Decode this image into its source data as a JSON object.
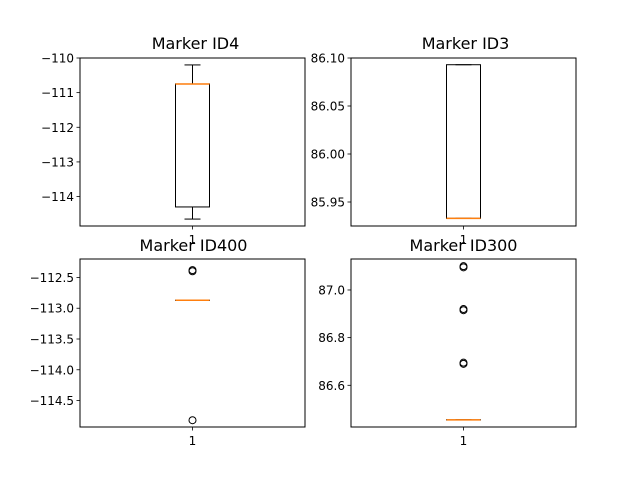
{
  "chart_data": [
    {
      "type": "box",
      "title": "Marker ID4",
      "ylim": [
        -114.85,
        -110.0
      ],
      "yticks": [
        -110,
        -111,
        -112,
        -113,
        -114
      ],
      "ytick_labels": [
        "−110",
        "−111",
        "−112",
        "−113",
        "−114"
      ],
      "xtick_labels": [
        "1"
      ],
      "box": {
        "whisker_low": -114.65,
        "q1": -114.3,
        "median": -110.75,
        "q3": -110.75,
        "whisker_high": -110.2
      },
      "fliers": []
    },
    {
      "type": "box",
      "title": "Marker ID3",
      "ylim": [
        85.925,
        86.1
      ],
      "yticks": [
        86.1,
        86.05,
        86.0,
        85.95
      ],
      "ytick_labels": [
        "86.10",
        "86.05",
        "86.00",
        "85.95"
      ],
      "xtick_labels": [
        "1"
      ],
      "box": {
        "whisker_low": 85.933,
        "q1": 85.933,
        "median": 85.933,
        "q3": 86.093,
        "whisker_high": 86.093
      },
      "fliers": []
    },
    {
      "type": "box",
      "title": "Marker ID400",
      "ylim": [
        -114.93,
        -112.2
      ],
      "yticks": [
        -112.5,
        -113.0,
        -113.5,
        -114.0,
        -114.5
      ],
      "ytick_labels": [
        "−112.5",
        "−113.0",
        "−113.5",
        "−114.0",
        "−114.5"
      ],
      "xtick_labels": [
        "1"
      ],
      "box": {
        "whisker_low": -112.87,
        "q1": -112.87,
        "median": -112.87,
        "q3": -112.87,
        "whisker_high": -112.87
      },
      "fliers": [
        -112.38,
        -112.4,
        -114.82
      ]
    },
    {
      "type": "box",
      "title": "Marker ID300",
      "ylim": [
        86.425,
        87.13
      ],
      "yticks": [
        87.0,
        86.8,
        86.6
      ],
      "ytick_labels": [
        "87.0",
        "86.8",
        "86.6"
      ],
      "xtick_labels": [
        "1"
      ],
      "box": {
        "whisker_low": 86.455,
        "q1": 86.455,
        "median": 86.455,
        "q3": 86.455,
        "whisker_high": 86.455
      },
      "fliers": [
        87.1,
        87.095,
        86.92,
        86.915,
        86.695,
        86.69
      ]
    }
  ]
}
